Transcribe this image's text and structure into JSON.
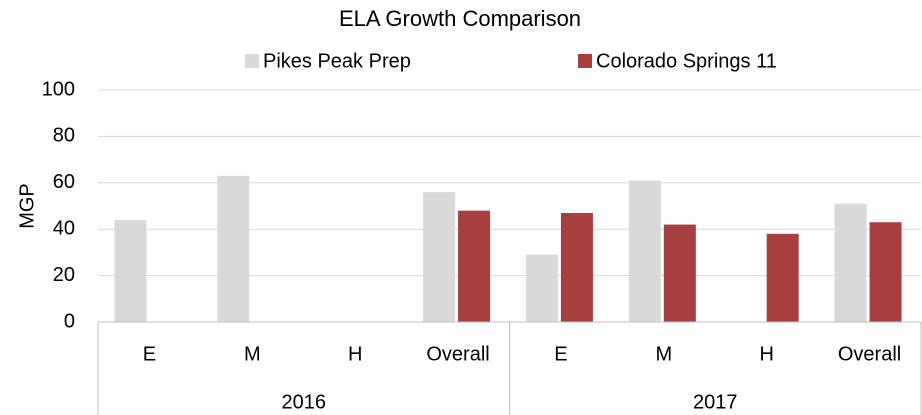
{
  "chart_data": {
    "type": "bar",
    "title": "ELA Growth Comparison",
    "y_label": "MGP",
    "categories": [
      "E",
      "M",
      "H",
      "Overall",
      "E",
      "M",
      "H",
      "Overall"
    ],
    "group_labels": [
      "2016",
      "2017"
    ],
    "series": [
      {
        "name": "Pikes Peak Prep",
        "color": "#d9d9d9",
        "values": [
          44,
          63,
          null,
          56,
          29,
          61,
          null,
          51
        ]
      },
      {
        "name": "Colorado Springs 11",
        "color": "#a83f3f",
        "values": [
          null,
          null,
          null,
          48,
          47,
          42,
          38,
          43
        ]
      }
    ],
    "ylim": [
      0,
      100
    ],
    "yticks": [
      0,
      20,
      40,
      60,
      80,
      100
    ],
    "grid": true,
    "legend": "top"
  }
}
